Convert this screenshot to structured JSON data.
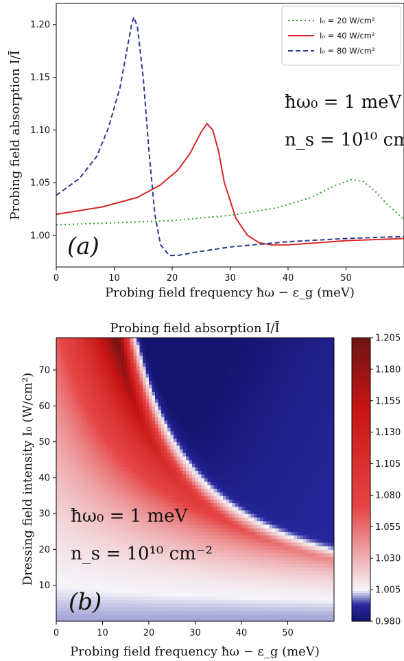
{
  "chart_data": [
    {
      "type": "line",
      "panel_label": "(a)",
      "xlabel": "Probing field frequency ħω − ε_g (meV)",
      "ylabel": "Probing field absorption I/Ī",
      "xlim": [
        0,
        60
      ],
      "ylim": [
        0.97,
        1.22
      ],
      "x_ticks": [
        0,
        10,
        20,
        30,
        40,
        50
      ],
      "y_ticks": [
        1.0,
        1.05,
        1.1,
        1.15,
        1.2
      ],
      "y_tick_labels": [
        "1.00",
        "1.05",
        "1.10",
        "1.15",
        "1.20"
      ],
      "legend_position": "top-right",
      "annotations": [
        "ħω₀ = 1 meV",
        "n_s = 10¹⁰ cm⁻²"
      ],
      "series": [
        {
          "name": "I₀ = 20 W/cm²",
          "color": "#2a9d2a",
          "style": "dotted",
          "points": [
            [
              0,
              1.01
            ],
            [
              10,
              1.012
            ],
            [
              20,
              1.014
            ],
            [
              30,
              1.019
            ],
            [
              38,
              1.026
            ],
            [
              44,
              1.036
            ],
            [
              48,
              1.047
            ],
            [
              51,
              1.053
            ],
            [
              53,
              1.051
            ],
            [
              55,
              1.042
            ],
            [
              57,
              1.03
            ],
            [
              60,
              1.015
            ]
          ]
        },
        {
          "name": "I₀ = 40 W/cm²",
          "color": "#d62728",
          "style": "solid",
          "points": [
            [
              0,
              1.02
            ],
            [
              8,
              1.027
            ],
            [
              14,
              1.036
            ],
            [
              18,
              1.048
            ],
            [
              21,
              1.062
            ],
            [
              23,
              1.077
            ],
            [
              25,
              1.098
            ],
            [
              26,
              1.106
            ],
            [
              27,
              1.1
            ],
            [
              28,
              1.08
            ],
            [
              29,
              1.05
            ],
            [
              31,
              1.016
            ],
            [
              33,
              1.0
            ],
            [
              35,
              0.993
            ],
            [
              37,
              0.991
            ],
            [
              40,
              0.991
            ],
            [
              45,
              0.993
            ],
            [
              50,
              0.995
            ],
            [
              60,
              0.997
            ]
          ]
        },
        {
          "name": "I₀ = 80 W/cm²",
          "color": "#2b3a8f",
          "style": "dashed",
          "points": [
            [
              0,
              1.038
            ],
            [
              4,
              1.054
            ],
            [
              7,
              1.075
            ],
            [
              9,
              1.102
            ],
            [
              11,
              1.14
            ],
            [
              12,
              1.17
            ],
            [
              13,
              1.2
            ],
            [
              13.4,
              1.207
            ],
            [
              14,
              1.198
            ],
            [
              15,
              1.15
            ],
            [
              16,
              1.08
            ],
            [
              17,
              1.02
            ],
            [
              18,
              0.991
            ],
            [
              19.5,
              0.981
            ],
            [
              21,
              0.981
            ],
            [
              24,
              0.984
            ],
            [
              30,
              0.989
            ],
            [
              40,
              0.994
            ],
            [
              50,
              0.997
            ],
            [
              60,
              0.999
            ]
          ]
        }
      ]
    },
    {
      "type": "heatmap",
      "panel_label": "(b)",
      "title": "Probing field absorption I/Ī",
      "xlabel": "Probing field frequency ħω − ε_g (meV)",
      "ylabel": "Dressing field intensity I₀ (W/cm²)",
      "xlim": [
        0,
        60
      ],
      "ylim": [
        0,
        79
      ],
      "x_ticks": [
        0,
        10,
        20,
        30,
        40,
        50
      ],
      "y_ticks": [
        10,
        20,
        30,
        40,
        50,
        60,
        70
      ],
      "annotations": [
        "ħω₀ = 1 meV",
        "n_s = 10¹⁰ cm⁻²"
      ],
      "colorbar": {
        "min": 0.98,
        "max": 1.205,
        "tick_labels": [
          "0.980",
          "1.005",
          "1.030",
          "1.055",
          "1.080",
          "1.105",
          "1.130",
          "1.155",
          "1.180",
          "1.205"
        ],
        "colormap": "seismic"
      }
    }
  ]
}
